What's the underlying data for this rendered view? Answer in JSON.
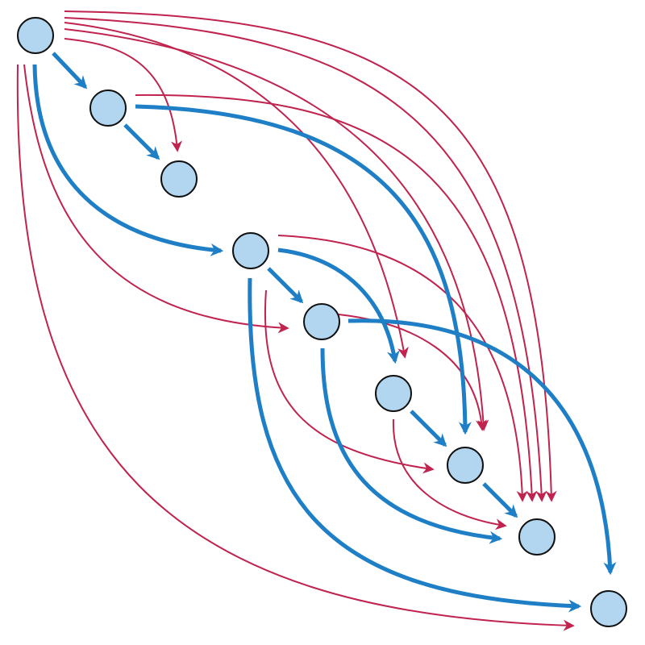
{
  "diagram": {
    "type": "directed-graph",
    "colors": {
      "node_fill": "#b3d6f0",
      "node_stroke": "#111111",
      "primary_edge": "#1f7fc6",
      "secondary_edge": "#c0234e"
    },
    "nodes": [
      "n1",
      "n2",
      "n3",
      "n4",
      "n5",
      "n6",
      "n7",
      "n8",
      "n9"
    ],
    "primary_edges": [
      [
        "n1",
        "n2"
      ],
      [
        "n2",
        "n3"
      ],
      [
        "n1",
        "n4"
      ],
      [
        "n4",
        "n5"
      ],
      [
        "n4",
        "n6"
      ],
      [
        "n5",
        "n6"
      ],
      [
        "n2",
        "n7"
      ],
      [
        "n6",
        "n7"
      ],
      [
        "n7",
        "n8"
      ],
      [
        "n5",
        "n8"
      ],
      [
        "n5",
        "n9"
      ],
      [
        "n4",
        "n9"
      ]
    ],
    "secondary_edges": [
      [
        "n1",
        "n3"
      ],
      [
        "n1",
        "n5"
      ],
      [
        "n1",
        "n6"
      ],
      [
        "n1",
        "n7"
      ],
      [
        "n1",
        "n8"
      ],
      [
        "n1",
        "n9"
      ],
      [
        "n2",
        "n8"
      ],
      [
        "n4",
        "n7"
      ],
      [
        "n4",
        "n8"
      ],
      [
        "n5",
        "n7"
      ],
      [
        "n6",
        "n8"
      ]
    ]
  }
}
